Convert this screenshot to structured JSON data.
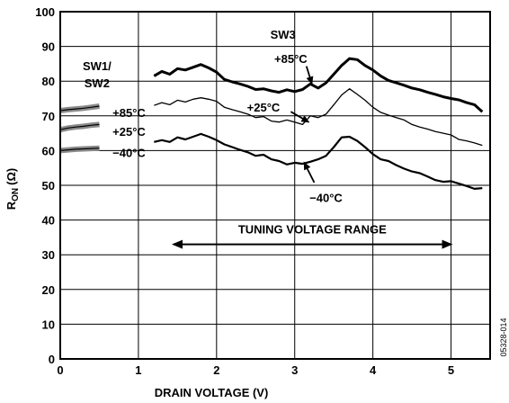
{
  "chart_data": {
    "type": "line",
    "title": "",
    "xlabel": "DRAIN VOLTAGE (V)",
    "ylabel_main": "R",
    "ylabel_sub": "ON",
    "ylabel_unit": "(Ω)",
    "xlim": [
      0,
      5.5
    ],
    "ylim": [
      0,
      100
    ],
    "x_ticks": [
      0,
      1,
      2,
      3,
      4,
      5
    ],
    "y_ticks": [
      0,
      10,
      20,
      30,
      40,
      50,
      60,
      70,
      80,
      90,
      100
    ],
    "grid": true,
    "series": [
      {
        "name": "SW3 +85°C",
        "weight": "thick",
        "points": [
          [
            1.2,
            81.5
          ],
          [
            1.3,
            82.8
          ],
          [
            1.4,
            82
          ],
          [
            1.5,
            83.6
          ],
          [
            1.6,
            83.2
          ],
          [
            1.7,
            84
          ],
          [
            1.8,
            84.8
          ],
          [
            1.9,
            83.8
          ],
          [
            2.0,
            82.6
          ],
          [
            2.1,
            80.5
          ],
          [
            2.2,
            79.8
          ],
          [
            2.3,
            79.2
          ],
          [
            2.4,
            78.5
          ],
          [
            2.5,
            77.6
          ],
          [
            2.6,
            77.8
          ],
          [
            2.7,
            77.2
          ],
          [
            2.8,
            76.8
          ],
          [
            2.9,
            77.5
          ],
          [
            3.0,
            77
          ],
          [
            3.1,
            77.6
          ],
          [
            3.2,
            79.2
          ],
          [
            3.3,
            78
          ],
          [
            3.4,
            79.5
          ],
          [
            3.5,
            82
          ],
          [
            3.6,
            84.5
          ],
          [
            3.7,
            86.5
          ],
          [
            3.8,
            86.2
          ],
          [
            3.9,
            84.5
          ],
          [
            4.0,
            83.2
          ],
          [
            4.1,
            81.5
          ],
          [
            4.2,
            80.2
          ],
          [
            4.3,
            79.5
          ],
          [
            4.4,
            78.8
          ],
          [
            4.5,
            78
          ],
          [
            4.6,
            77.5
          ],
          [
            4.7,
            76.8
          ],
          [
            4.8,
            76.2
          ],
          [
            4.9,
            75.5
          ],
          [
            5.0,
            75
          ],
          [
            5.1,
            74.6
          ],
          [
            5.2,
            73.8
          ],
          [
            5.3,
            73.2
          ],
          [
            5.4,
            71.2
          ]
        ]
      },
      {
        "name": "SW3 +25°C",
        "weight": "thin",
        "points": [
          [
            1.2,
            73
          ],
          [
            1.3,
            73.8
          ],
          [
            1.4,
            73.2
          ],
          [
            1.5,
            74.5
          ],
          [
            1.6,
            74
          ],
          [
            1.7,
            74.8
          ],
          [
            1.8,
            75.2
          ],
          [
            1.9,
            74.8
          ],
          [
            2.0,
            74.2
          ],
          [
            2.1,
            72.5
          ],
          [
            2.2,
            71.8
          ],
          [
            2.3,
            71.2
          ],
          [
            2.4,
            70.5
          ],
          [
            2.5,
            69.5
          ],
          [
            2.6,
            69.8
          ],
          [
            2.7,
            68.5
          ],
          [
            2.8,
            68.2
          ],
          [
            2.9,
            68.8
          ],
          [
            3.0,
            68.2
          ],
          [
            3.1,
            67.5
          ],
          [
            3.2,
            70
          ],
          [
            3.3,
            69.5
          ],
          [
            3.4,
            70.5
          ],
          [
            3.5,
            73.2
          ],
          [
            3.6,
            76
          ],
          [
            3.7,
            77.8
          ],
          [
            3.8,
            76.2
          ],
          [
            3.9,
            74.5
          ],
          [
            4.0,
            72.5
          ],
          [
            4.1,
            71
          ],
          [
            4.2,
            70.2
          ],
          [
            4.3,
            69.5
          ],
          [
            4.4,
            68.8
          ],
          [
            4.5,
            67.5
          ],
          [
            4.6,
            66.8
          ],
          [
            4.7,
            66.2
          ],
          [
            4.8,
            65.5
          ],
          [
            4.9,
            65
          ],
          [
            5.0,
            64.5
          ],
          [
            5.1,
            63.2
          ],
          [
            5.2,
            62.8
          ],
          [
            5.3,
            62.2
          ],
          [
            5.4,
            61.5
          ]
        ]
      },
      {
        "name": "SW3 −40°C",
        "weight": "medium",
        "points": [
          [
            1.2,
            62.5
          ],
          [
            1.3,
            63
          ],
          [
            1.4,
            62.5
          ],
          [
            1.5,
            63.8
          ],
          [
            1.6,
            63.2
          ],
          [
            1.7,
            64
          ],
          [
            1.8,
            64.8
          ],
          [
            1.9,
            64
          ],
          [
            2.0,
            63
          ],
          [
            2.1,
            61.8
          ],
          [
            2.2,
            61
          ],
          [
            2.3,
            60.2
          ],
          [
            2.4,
            59.5
          ],
          [
            2.5,
            58.5
          ],
          [
            2.6,
            58.8
          ],
          [
            2.7,
            57.5
          ],
          [
            2.8,
            57
          ],
          [
            2.9,
            56
          ],
          [
            3.0,
            56.5
          ],
          [
            3.1,
            56.2
          ],
          [
            3.2,
            56.8
          ],
          [
            3.3,
            57.5
          ],
          [
            3.4,
            58.5
          ],
          [
            3.5,
            61
          ],
          [
            3.6,
            63.8
          ],
          [
            3.7,
            64
          ],
          [
            3.8,
            62.8
          ],
          [
            3.9,
            61
          ],
          [
            4.0,
            59
          ],
          [
            4.1,
            57.5
          ],
          [
            4.2,
            57
          ],
          [
            4.3,
            55.8
          ],
          [
            4.4,
            54.8
          ],
          [
            4.5,
            54
          ],
          [
            4.6,
            53.5
          ],
          [
            4.7,
            52.5
          ],
          [
            4.8,
            51.5
          ],
          [
            4.9,
            51
          ],
          [
            5.0,
            51.2
          ],
          [
            5.1,
            50.5
          ],
          [
            5.2,
            49.8
          ],
          [
            5.3,
            49
          ],
          [
            5.4,
            49.2
          ]
        ]
      },
      {
        "name": "SW1/SW2 +85°C",
        "weight": "band",
        "points": [
          [
            0,
            71.5
          ],
          [
            0.1,
            71.8
          ],
          [
            0.2,
            72
          ],
          [
            0.3,
            72.2
          ],
          [
            0.4,
            72.5
          ],
          [
            0.5,
            72.8
          ]
        ]
      },
      {
        "name": "SW1/SW2 +25°C",
        "weight": "band",
        "points": [
          [
            0,
            66
          ],
          [
            0.1,
            66.5
          ],
          [
            0.2,
            66.8
          ],
          [
            0.3,
            67
          ],
          [
            0.4,
            67.3
          ],
          [
            0.5,
            67.5
          ]
        ]
      },
      {
        "name": "SW1/SW2 −40°C",
        "weight": "band",
        "points": [
          [
            0,
            60
          ],
          [
            0.1,
            60.2
          ],
          [
            0.2,
            60.4
          ],
          [
            0.3,
            60.5
          ],
          [
            0.4,
            60.6
          ],
          [
            0.5,
            60.7
          ]
        ]
      }
    ],
    "range_arrow": {
      "label": "TUNING VOLTAGE RANGE",
      "x_start": 1.45,
      "x_end": 5.0,
      "y": 33,
      "label_y": 37.5
    },
    "annotations": [
      {
        "text": "SW3",
        "x": 2.85,
        "y": 93.5
      },
      {
        "text": "SW1/",
        "x": 0.47,
        "y": 84.5
      },
      {
        "text": "SW2",
        "x": 0.47,
        "y": 79.5
      },
      {
        "text": "+85°C",
        "x": 0.88,
        "y": 71
      },
      {
        "text": "+25°C",
        "x": 0.88,
        "y": 65.5
      },
      {
        "text": "−40°C",
        "x": 0.88,
        "y": 59.5
      },
      {
        "text": "+85°C",
        "x": 2.95,
        "y": 86.5
      },
      {
        "text": "+25°C",
        "x": 2.6,
        "y": 72.5
      },
      {
        "text": "−40°C",
        "x": 3.4,
        "y": 46.5
      }
    ],
    "leaders": [
      {
        "x1": 3.15,
        "y1": 84.3,
        "x2": 3.22,
        "y2": 79.2
      },
      {
        "x1": 2.95,
        "y1": 71.2,
        "x2": 3.18,
        "y2": 68.2
      },
      {
        "x1": 3.25,
        "y1": 50.8,
        "x2": 3.12,
        "y2": 56.6
      }
    ],
    "figure_id": "05328-014"
  }
}
